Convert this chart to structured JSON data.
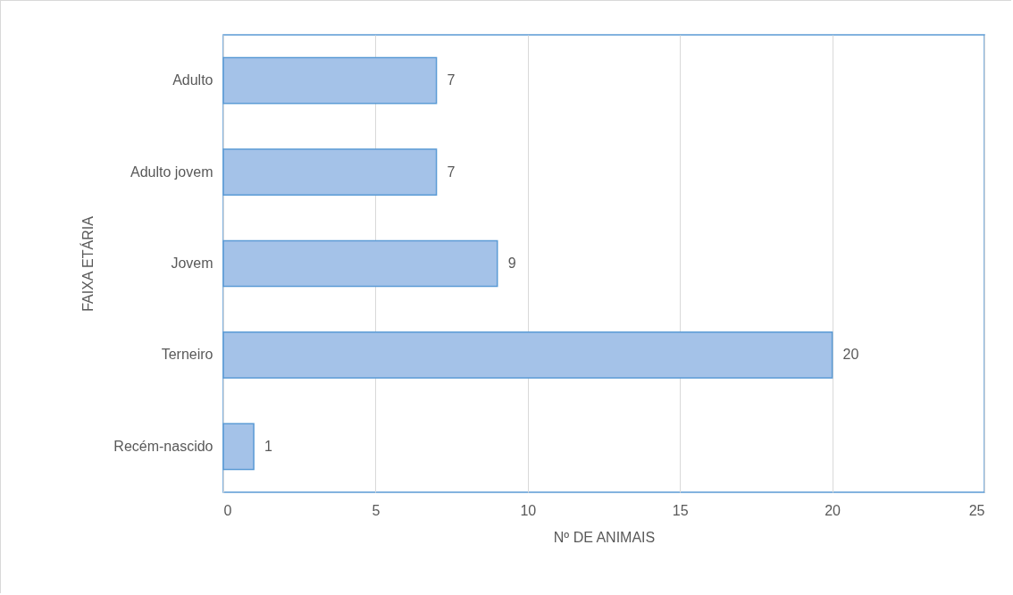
{
  "chart_data": {
    "type": "bar",
    "orientation": "horizontal",
    "xlabel": "Nº DE ANIMAIS",
    "ylabel": "FAIXA ETÁRIA",
    "categories": [
      "Adulto",
      "Adulto jovem",
      "Jovem",
      "Terneiro",
      "Recém-nascido"
    ],
    "values": [
      7,
      7,
      9,
      20,
      1
    ],
    "color": "#a4c2e8",
    "xlim": [
      0,
      25
    ],
    "xticks": [
      0,
      5,
      10,
      15,
      20,
      25
    ],
    "grid": "x",
    "data_labels": true
  }
}
